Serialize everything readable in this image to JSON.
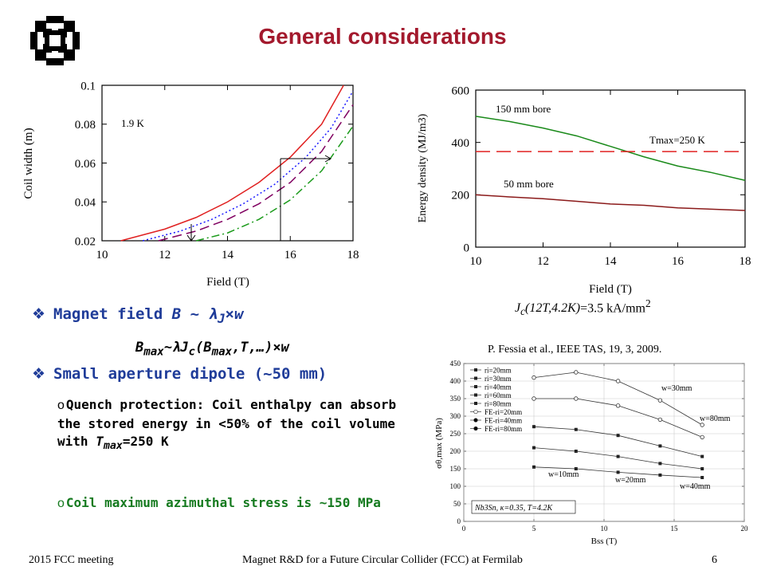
{
  "slide": {
    "title": "General considerations",
    "footer_left": "2015 FCC meeting",
    "footer_center": "Magnet R&D for a Future Circular Collider (FCC) at Fermilab",
    "footer_page": "6",
    "colors": {
      "title": "#a3192d",
      "bullet": "#1f3c99",
      "green_text": "#157a1f"
    }
  },
  "bullets": {
    "b1_text": "Magnet field ",
    "b1_formula": "B ~ λJ×w",
    "equation": "Bmax~λJc(Bmax,T,…)×w",
    "b2_text": "Small aperture dipole (~50 mm)",
    "sub1_a": "Quench protection: Coil enthalpy can absorb the stored energy in <50% of the coil volume with ",
    "sub1_var": "Tmax",
    "sub1_b": "=250 K",
    "sub2": "Coil maximum azimuthal stress is ~150 MPa"
  },
  "annotations": {
    "jc": "Jc(12T,4.2K)=3.5 kA/mm2",
    "reference": "P. Fessia et al., IEEE TAS, 19, 3, 2009."
  },
  "chart_data": [
    {
      "type": "line",
      "xlabel": "Field (T)",
      "ylabel": "Coil width (m)",
      "xlim": [
        10,
        18
      ],
      "ylim": [
        0.02,
        0.1
      ],
      "xticks": [
        10,
        12,
        14,
        16,
        18
      ],
      "yticks": [
        "0.02",
        "0.04",
        "0.06",
        "0.08",
        "0.1"
      ],
      "annotation": "1.9 K",
      "series": [
        {
          "color": "#e02020",
          "style": "solid",
          "x": [
            10.6,
            12,
            13,
            14,
            15,
            16,
            17,
            17.7
          ],
          "y": [
            0.02,
            0.026,
            0.032,
            0.04,
            0.05,
            0.063,
            0.08,
            0.1
          ]
        },
        {
          "color": "#1a1aff",
          "style": "dotted",
          "x": [
            11.3,
            12.5,
            13.5,
            14.5,
            15.5,
            16.5,
            17.3,
            18
          ],
          "y": [
            0.02,
            0.025,
            0.031,
            0.039,
            0.049,
            0.063,
            0.078,
            0.097
          ]
        },
        {
          "color": "#800060",
          "style": "dashed",
          "x": [
            11.8,
            13,
            14,
            15,
            16,
            17,
            18
          ],
          "y": [
            0.02,
            0.025,
            0.031,
            0.039,
            0.05,
            0.066,
            0.09
          ]
        },
        {
          "color": "#1a9a1a",
          "style": "dashdot",
          "x": [
            13,
            14,
            15,
            16,
            17,
            18
          ],
          "y": [
            0.02,
            0.024,
            0.031,
            0.041,
            0.056,
            0.079
          ]
        }
      ]
    },
    {
      "type": "line",
      "xlabel": "Field (T)",
      "ylabel": "Energy density (MJ/m3)",
      "xlim": [
        10,
        18
      ],
      "ylim": [
        0,
        600
      ],
      "xticks": [
        10,
        12,
        14,
        16,
        18
      ],
      "yticks": [
        0,
        200,
        400,
        600
      ],
      "series": [
        {
          "name": "150 mm bore",
          "color": "#1a8a1a",
          "x": [
            10,
            11,
            12,
            13,
            14,
            15,
            16,
            17,
            18
          ],
          "y": [
            500,
            480,
            455,
            425,
            385,
            345,
            310,
            285,
            255
          ]
        },
        {
          "name": "50 mm bore",
          "color": "#8b1a1a",
          "x": [
            10,
            11,
            12,
            13,
            14,
            15,
            16,
            17,
            18
          ],
          "y": [
            200,
            192,
            185,
            175,
            165,
            160,
            150,
            145,
            140
          ]
        },
        {
          "name": "Tmax=250 K",
          "color": "#e02020",
          "style": "dashed",
          "x": [
            10,
            18
          ],
          "y": [
            365,
            365
          ]
        }
      ]
    },
    {
      "type": "scatter",
      "xlabel": "Bss (T)",
      "ylabel": "σθ,max (MPa)",
      "xlim": [
        0,
        20
      ],
      "ylim": [
        0,
        450
      ],
      "xticks": [
        0,
        5,
        10,
        15,
        20
      ],
      "yticks": [
        0,
        50,
        100,
        150,
        200,
        250,
        300,
        350,
        400,
        450
      ],
      "legend": [
        "ri=20mm",
        "ri=30mm",
        "ri=40mm",
        "ri=60mm",
        "ri=80mm",
        "FE-ri=20mm",
        "FE-ri=40mm",
        "FE-ri=80mm"
      ],
      "legend_position": "top-left",
      "labels": [
        "w=30mm",
        "w=80mm",
        "w=10mm",
        "w=20mm",
        "w=40mm"
      ],
      "inset": "Nb3Sn, κ=0.35, T=4.2K",
      "series": [
        {
          "name": "ri=20mm",
          "x": [
            5,
            8,
            11,
            14,
            17
          ],
          "y": [
            155,
            150,
            140,
            132,
            125
          ]
        },
        {
          "name": "ri=30mm",
          "x": [
            5,
            8,
            11,
            14,
            17
          ],
          "y": [
            210,
            200,
            185,
            165,
            150
          ]
        },
        {
          "name": "ri=40mm",
          "x": [
            5,
            8,
            11,
            14,
            17
          ],
          "y": [
            270,
            262,
            245,
            215,
            185
          ]
        },
        {
          "name": "ri=60mm",
          "x": [
            5,
            8,
            11,
            14,
            17
          ],
          "y": [
            350,
            350,
            330,
            290,
            240
          ]
        },
        {
          "name": "ri=80mm",
          "x": [
            5,
            8,
            11,
            14,
            17
          ],
          "y": [
            410,
            425,
            400,
            345,
            275
          ]
        }
      ]
    }
  ]
}
